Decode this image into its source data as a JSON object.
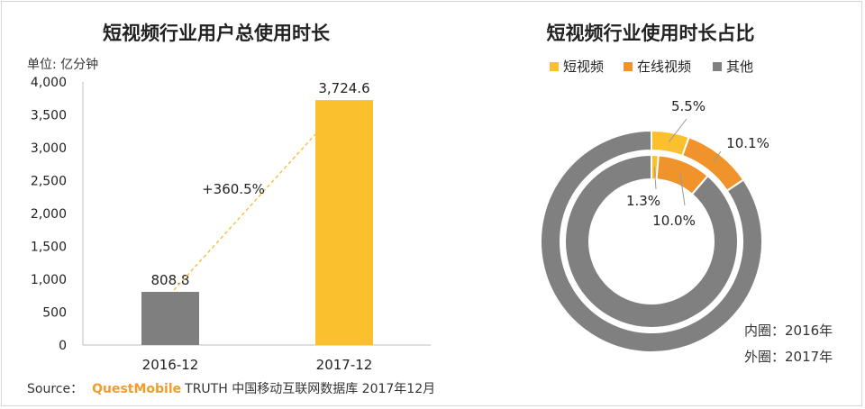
{
  "colors": {
    "short_video": "#fbc02d",
    "online_video": "#f0932b",
    "other": "#808080",
    "dashed_line": "#f6c34d",
    "axis": "#bfbfbf"
  },
  "chart_data": [
    {
      "type": "bar",
      "title": "短视频行业用户总使用时长",
      "unit_label": "单位: 亿分钟",
      "categories": [
        "2016-12",
        "2017-12"
      ],
      "values": [
        808.8,
        3724.6
      ],
      "value_labels": [
        "808.8",
        "3,724.6"
      ],
      "bar_colors": [
        "#7f7f7f",
        "#fbc02d"
      ],
      "ylim": [
        0,
        4000
      ],
      "yticks": [
        0,
        500,
        1000,
        1500,
        2000,
        2500,
        3000,
        3500,
        4000
      ],
      "ytick_labels": [
        "0",
        "500",
        "1,000",
        "1,500",
        "2,000",
        "2,500",
        "3,000",
        "3,500",
        "4,000"
      ],
      "growth_label": "+360.5%",
      "grid": false
    },
    {
      "type": "pie",
      "title": "短视频行业使用时长占比",
      "legend": [
        {
          "name": "短视频",
          "color": "#fbc02d"
        },
        {
          "name": "在线视频",
          "color": "#f0932b"
        },
        {
          "name": "其他",
          "color": "#808080"
        }
      ],
      "legend_position": "top",
      "rings": [
        {
          "ring": "outer",
          "label": "外圈：2017年",
          "slices": [
            {
              "name": "短视频",
              "value": 5.5,
              "label": "5.5%"
            },
            {
              "name": "在线视频",
              "value": 10.1,
              "label": "10.1%"
            },
            {
              "name": "其他",
              "value": 84.4
            }
          ]
        },
        {
          "ring": "inner",
          "label": "内圈：2016年",
          "slices": [
            {
              "name": "短视频",
              "value": 1.3,
              "label": "1.3%"
            },
            {
              "name": "在线视频",
              "value": 10.0,
              "label": "10.0%"
            },
            {
              "name": "其他",
              "value": 88.7
            }
          ]
        }
      ]
    }
  ],
  "source": {
    "prefix": "Source：",
    "brand": "QuestMobile",
    "text": "TRUTH 中国移动互联网数据库 2017年12月"
  }
}
